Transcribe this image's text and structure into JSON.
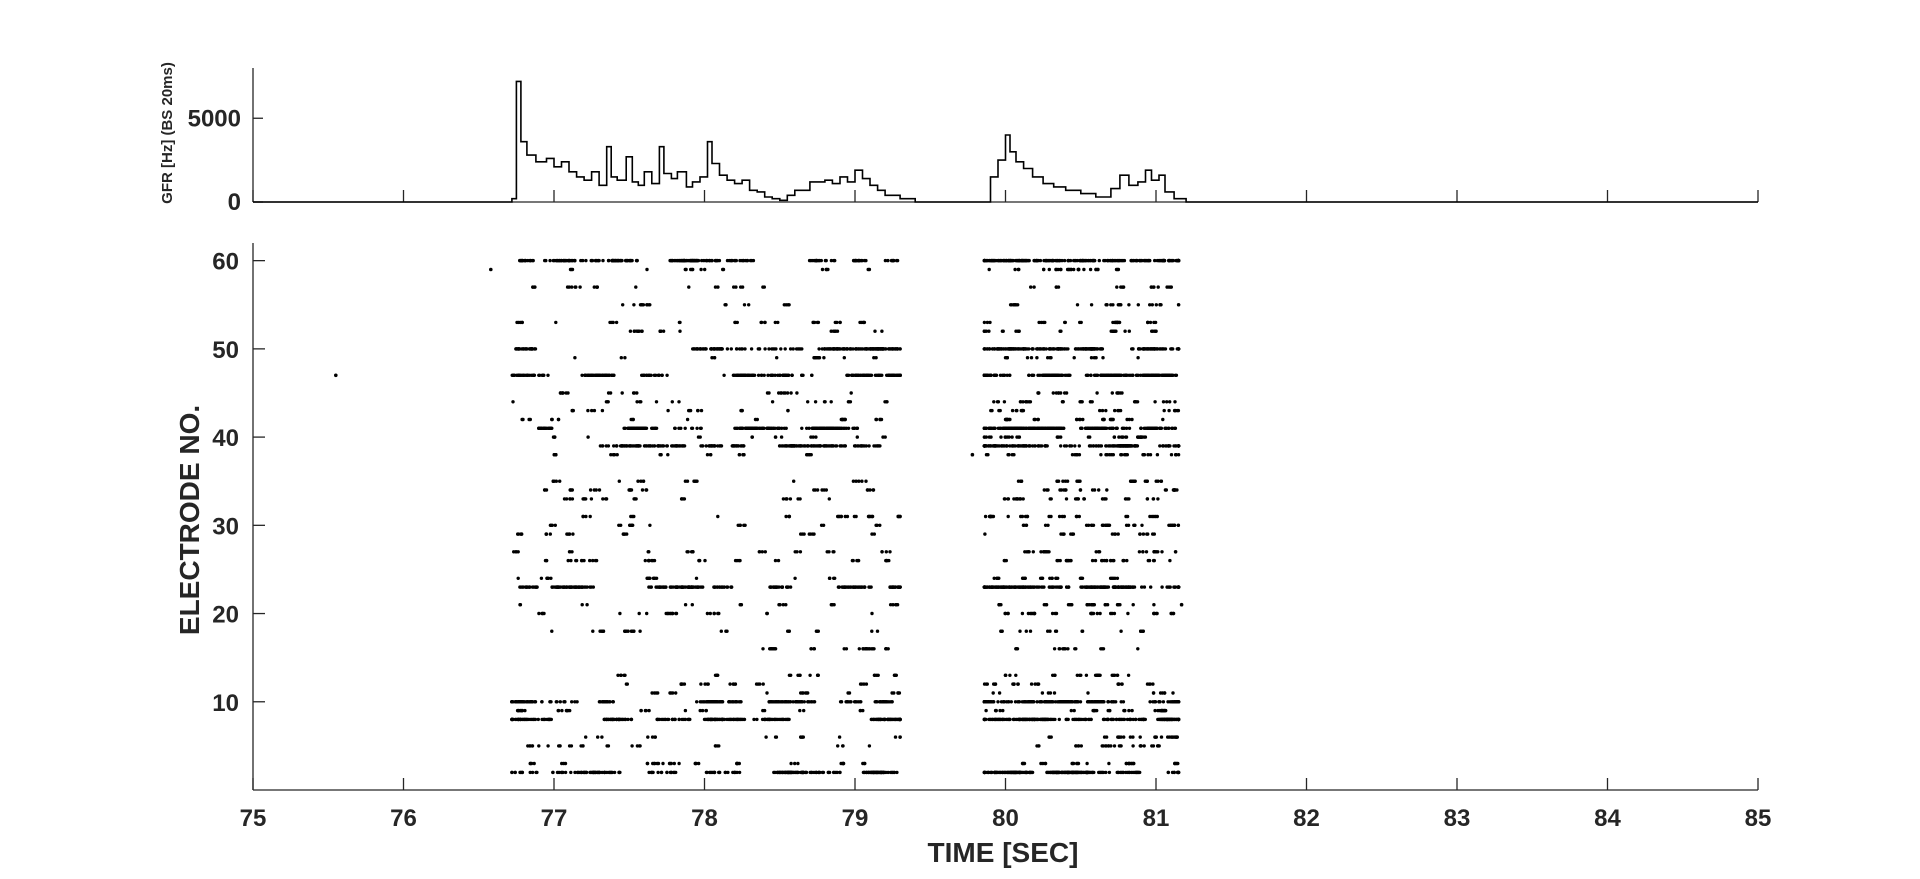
{
  "chart_data": [
    {
      "type": "line",
      "name": "gfr-panel",
      "ylabel": "GFR [Hz] (BS 20ms)",
      "xlim": [
        75,
        85
      ],
      "ylim": [
        0,
        8000
      ],
      "yticks": [
        0,
        5000
      ],
      "ytick_labels": [
        "0",
        "5000"
      ],
      "xticks": [
        75,
        76,
        77,
        78,
        79,
        80,
        81,
        82,
        83,
        84,
        85
      ],
      "x_tick_labels_shown": false,
      "grid": false,
      "color": "#000000",
      "x": [
        75.0,
        76.7,
        76.72,
        76.75,
        76.78,
        76.82,
        76.88,
        76.95,
        77.0,
        77.05,
        77.1,
        77.15,
        77.2,
        77.25,
        77.3,
        77.35,
        77.38,
        77.42,
        77.48,
        77.52,
        77.56,
        77.6,
        77.65,
        77.7,
        77.73,
        77.78,
        77.82,
        77.88,
        77.92,
        77.97,
        78.02,
        78.05,
        78.1,
        78.15,
        78.2,
        78.25,
        78.3,
        78.35,
        78.4,
        78.45,
        78.5,
        78.55,
        78.6,
        78.7,
        78.8,
        78.85,
        78.9,
        78.95,
        79.0,
        79.05,
        79.1,
        79.15,
        79.2,
        79.3,
        79.4,
        79.8,
        79.9,
        79.95,
        80.0,
        80.03,
        80.07,
        80.12,
        80.18,
        80.25,
        80.32,
        80.4,
        80.5,
        80.6,
        80.7,
        80.76,
        80.82,
        80.88,
        80.93,
        80.97,
        81.02,
        81.06,
        81.12,
        81.2,
        85.0
      ],
      "y": [
        0,
        0,
        200,
        7200,
        3600,
        2800,
        2400,
        2600,
        2100,
        2400,
        1800,
        1500,
        1300,
        1800,
        1000,
        3300,
        1500,
        1300,
        2700,
        1200,
        1000,
        1800,
        1100,
        3300,
        1700,
        1400,
        1800,
        900,
        1200,
        1500,
        3600,
        2300,
        1600,
        1300,
        1100,
        1300,
        700,
        600,
        300,
        200,
        100,
        400,
        700,
        1200,
        1300,
        1100,
        1500,
        1200,
        1900,
        1400,
        1000,
        700,
        400,
        200,
        0,
        0,
        1500,
        2500,
        4000,
        3000,
        2400,
        2000,
        1500,
        1100,
        900,
        700,
        500,
        300,
        800,
        1600,
        1000,
        1200,
        1900,
        1300,
        1600,
        600,
        200,
        0,
        0
      ]
    },
    {
      "type": "scatter",
      "name": "raster-panel",
      "xlabel": "TIME [SEC]",
      "ylabel": "ELECTRODE NO.",
      "xlim": [
        75,
        85
      ],
      "ylim": [
        0,
        62
      ],
      "xticks": [
        75,
        76,
        77,
        78,
        79,
        80,
        81,
        82,
        83,
        84,
        85
      ],
      "xtick_labels": [
        "75",
        "76",
        "77",
        "78",
        "79",
        "80",
        "81",
        "82",
        "83",
        "84",
        "85"
      ],
      "yticks": [
        10,
        20,
        30,
        40,
        50,
        60
      ],
      "ytick_labels": [
        "10",
        "20",
        "30",
        "40",
        "50",
        "60"
      ],
      "grid": false,
      "marker_color": "#000000",
      "isolated_points": [
        {
          "x": 75.55,
          "y": 47
        },
        {
          "x": 76.58,
          "y": 59
        },
        {
          "x": 78.43,
          "y": 10
        },
        {
          "x": 79.78,
          "y": 38
        },
        {
          "x": 81.17,
          "y": 21
        },
        {
          "x": 81.13,
          "y": 27
        }
      ],
      "bursts": [
        {
          "start": 76.72,
          "end": 79.3
        },
        {
          "start": 79.86,
          "end": 81.15
        }
      ],
      "active_electrodes": [
        2,
        3,
        5,
        6,
        8,
        9,
        10,
        11,
        12,
        13,
        16,
        18,
        20,
        21,
        23,
        24,
        26,
        27,
        29,
        30,
        31,
        33,
        34,
        35,
        38,
        39,
        40,
        41,
        42,
        43,
        44,
        45,
        47,
        49,
        50,
        52,
        53,
        55,
        57,
        59,
        60
      ],
      "dense_electrodes": [
        2,
        8,
        10,
        23,
        39,
        41,
        47,
        50,
        60
      ]
    }
  ]
}
